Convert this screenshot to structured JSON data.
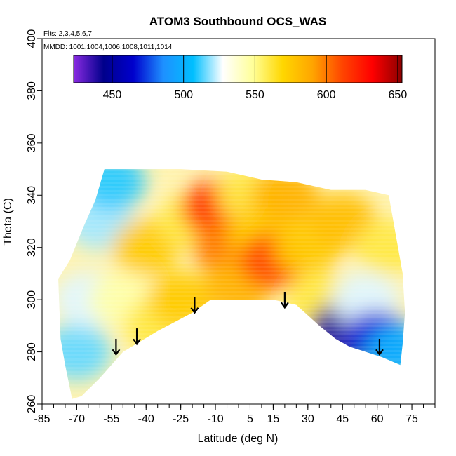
{
  "chart_data": {
    "type": "heatmap",
    "title": "ATOM3 Southbound OCS_WAS",
    "flights_note": "Flts: 2,3,4,5,6,7",
    "dates_note": "MMDD: 1001,1004,1006,1008,1011,1014",
    "xlabel": "Latitude (deg N)",
    "ylabel": "Theta (C)",
    "xlim": [
      -85,
      85
    ],
    "ylim": [
      260,
      400
    ],
    "x_ticks": [
      -85,
      -70,
      -55,
      -40,
      -25,
      -10,
      5,
      15,
      30,
      45,
      60,
      75
    ],
    "y_ticks": [
      260,
      280,
      300,
      320,
      340,
      360,
      380,
      400
    ],
    "colorbar": {
      "ticks": [
        450,
        500,
        550,
        600,
        650
      ],
      "range": [
        423,
        653
      ],
      "colors": [
        "#8a2be2",
        "#00008b",
        "#0000cd",
        "#1e90ff",
        "#00bfff",
        "#ffffff",
        "#ffff99",
        "#ffd700",
        "#ffa500",
        "#ff4500",
        "#ff0000",
        "#8b0000"
      ]
    },
    "region_outline": [
      [
        -72,
        262
      ],
      [
        -75,
        275
      ],
      [
        -77,
        285
      ],
      [
        -78,
        308
      ],
      [
        -73,
        315
      ],
      [
        -67,
        328
      ],
      [
        -62,
        338
      ],
      [
        -58,
        350
      ],
      [
        -45,
        350
      ],
      [
        -25,
        350
      ],
      [
        -5,
        349
      ],
      [
        10,
        346
      ],
      [
        25,
        345
      ],
      [
        40,
        342
      ],
      [
        55,
        342
      ],
      [
        65,
        340
      ],
      [
        68,
        325
      ],
      [
        71,
        310
      ],
      [
        72,
        295
      ],
      [
        71,
        283
      ],
      [
        70,
        275
      ],
      [
        62,
        278
      ],
      [
        48,
        282
      ],
      [
        42,
        285
      ],
      [
        35,
        290
      ],
      [
        25,
        298
      ],
      [
        15,
        300
      ],
      [
        0,
        300
      ],
      [
        -12,
        300
      ],
      [
        -20,
        295
      ],
      [
        -35,
        288
      ],
      [
        -50,
        280
      ],
      [
        -60,
        270
      ],
      [
        -68,
        263
      ]
    ],
    "field_samples": [
      {
        "lat": -70,
        "theta": 280,
        "value": 515
      },
      {
        "lat": -65,
        "theta": 300,
        "value": 525
      },
      {
        "lat": -60,
        "theta": 330,
        "value": 520
      },
      {
        "lat": -55,
        "theta": 345,
        "value": 510
      },
      {
        "lat": -50,
        "theta": 300,
        "value": 545
      },
      {
        "lat": -40,
        "theta": 320,
        "value": 575
      },
      {
        "lat": -35,
        "theta": 290,
        "value": 560
      },
      {
        "lat": -25,
        "theta": 300,
        "value": 575
      },
      {
        "lat": -20,
        "theta": 330,
        "value": 560
      },
      {
        "lat": -10,
        "theta": 335,
        "value": 615
      },
      {
        "lat": -5,
        "theta": 320,
        "value": 600
      },
      {
        "lat": 0,
        "theta": 305,
        "value": 585
      },
      {
        "lat": 5,
        "theta": 340,
        "value": 560
      },
      {
        "lat": 10,
        "theta": 325,
        "value": 575
      },
      {
        "lat": 15,
        "theta": 315,
        "value": 610
      },
      {
        "lat": 20,
        "theta": 340,
        "value": 585
      },
      {
        "lat": 30,
        "theta": 320,
        "value": 575
      },
      {
        "lat": 35,
        "theta": 300,
        "value": 560
      },
      {
        "lat": 45,
        "theta": 330,
        "value": 580
      },
      {
        "lat": 45,
        "theta": 288,
        "value": 440
      },
      {
        "lat": 55,
        "theta": 300,
        "value": 525
      },
      {
        "lat": 60,
        "theta": 285,
        "value": 470
      },
      {
        "lat": 65,
        "theta": 320,
        "value": 560
      },
      {
        "lat": 70,
        "theta": 280,
        "value": 500
      }
    ],
    "arrows": [
      {
        "lat": -53,
        "theta_top": 285,
        "theta_bottom": 279
      },
      {
        "lat": -44,
        "theta_top": 289,
        "theta_bottom": 283
      },
      {
        "lat": -19,
        "theta_top": 301,
        "theta_bottom": 295
      },
      {
        "lat": 20,
        "theta_top": 303,
        "theta_bottom": 297
      },
      {
        "lat": 61,
        "theta_top": 285,
        "theta_bottom": 279
      }
    ],
    "grid": false
  }
}
